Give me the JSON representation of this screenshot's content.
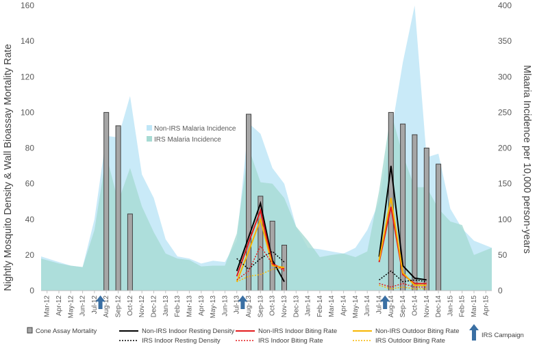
{
  "chart_data": {
    "type": "bar+line+area",
    "categories": [
      "Mar-12",
      "Apr-12",
      "May-12",
      "Jun-12",
      "Jul-12",
      "Aug-12",
      "Sep-12",
      "Oct-12",
      "Nov-12",
      "Dec-12",
      "Jan-13",
      "Feb-13",
      "Mar-13",
      "Apr-13",
      "May-13",
      "Jun-13",
      "Jul-13",
      "Aug-13",
      "Sep-13",
      "Oct-13",
      "Nov-13",
      "Dec-13",
      "Jan-14",
      "Feb-14",
      "Mar-14",
      "Apr-14",
      "May-14",
      "Jun-14",
      "Jul-14",
      "Aug-14",
      "Sep-14",
      "Oct-14",
      "Nov-14",
      "Dec-14",
      "Jan-15",
      "Feb-15",
      "Mar-15",
      "Apr-15"
    ],
    "ylabel": "Nightly Mosquito Density & Wall Bioassay Mortality Rate",
    "y2label": "Mlaaria Incidence per 10,000 person-years",
    "ylim": [
      0,
      160
    ],
    "y2lim": [
      0,
      400
    ],
    "yticks": [
      0,
      20,
      40,
      60,
      80,
      100,
      120,
      140,
      160
    ],
    "y2ticks": [
      0,
      50,
      100,
      150,
      200,
      250,
      300,
      350,
      400
    ],
    "grid": false,
    "areas": [
      {
        "name": "Non-IRS Malaria Incidence",
        "color": "#bfe6f7",
        "axis": "right",
        "x": [
          0,
          1,
          2,
          3,
          4,
          5,
          6,
          7,
          8,
          9,
          10,
          11,
          12,
          13,
          14,
          15,
          16,
          17,
          18,
          19,
          20,
          21,
          22,
          23,
          24,
          25,
          26,
          27,
          28,
          29,
          30,
          31,
          32,
          33,
          34,
          35,
          36,
          37
        ],
        "values": [
          48,
          40,
          35,
          33,
          100,
          217,
          215,
          273,
          163,
          130,
          72,
          48,
          45,
          38,
          42,
          40,
          70,
          235,
          220,
          172,
          150,
          90,
          60,
          58,
          55,
          52,
          60,
          85,
          125,
          220,
          320,
          400,
          187,
          192,
          115,
          87,
          70,
          60
        ]
      },
      {
        "name": "IRS Malaria Incidence",
        "color": "#a6dbd3",
        "axis": "right",
        "x": [
          0,
          1,
          2,
          3,
          4,
          5,
          6,
          7,
          8,
          9,
          10,
          11,
          12,
          13,
          14,
          15,
          16,
          17,
          18,
          19,
          20,
          21,
          22,
          23,
          24,
          25,
          26,
          27,
          28,
          29,
          30,
          31,
          32,
          33,
          34,
          35,
          36,
          37
        ],
        "values": [
          45,
          38,
          35,
          33,
          85,
          190,
          125,
          172,
          118,
          82,
          52,
          45,
          43,
          34,
          35,
          35,
          80,
          200,
          152,
          150,
          130,
          90,
          70,
          47,
          50,
          52,
          47,
          55,
          140,
          250,
          190,
          145,
          145,
          115,
          97,
          92,
          50,
          60
        ]
      }
    ],
    "bars": {
      "name": "Cone Assay Mortality",
      "color": "#a6a6a6",
      "x": [
        5,
        6,
        7,
        17,
        18,
        19,
        20,
        29,
        30,
        31,
        32,
        33
      ],
      "values": [
        100,
        92.5,
        43,
        99,
        53,
        39,
        25.5,
        100,
        93.5,
        87.5,
        80,
        71
      ]
    },
    "series": [
      {
        "name": "Non-IRS Indoor Resting Density",
        "color": "#000000",
        "dash": "solid",
        "x": [
          16,
          17,
          18,
          19,
          20
        ],
        "values": [
          11,
          30,
          49,
          17,
          5
        ]
      },
      {
        "name": "Non-IRS Indoor Biting Rate",
        "color": "#e31a1c",
        "dash": "solid",
        "x": [
          16,
          17,
          18,
          19,
          20
        ],
        "values": [
          8,
          27,
          45,
          15,
          12
        ]
      },
      {
        "name": "Non-IRS Outdoor Biting Rate",
        "color": "#f7b500",
        "dash": "solid",
        "x": [
          16,
          17,
          18,
          19,
          20
        ],
        "values": [
          5,
          22,
          40,
          14,
          13
        ]
      },
      {
        "name": "IRS Indoor Resting Density",
        "color": "#000000",
        "dash": "dotted",
        "x": [
          16,
          17,
          18,
          19,
          20
        ],
        "values": [
          18,
          12,
          18,
          22,
          16
        ]
      },
      {
        "name": "IRS Indoor Biting Rate",
        "color": "#e31a1c",
        "dash": "dotted",
        "x": [
          16,
          17,
          18,
          19,
          20
        ],
        "values": [
          6,
          11,
          25,
          15,
          11
        ]
      },
      {
        "name": "IRS Outdoor Biting Rate",
        "color": "#f7b500",
        "dash": "dotted",
        "x": [
          16,
          17,
          18,
          19,
          20
        ],
        "values": [
          5,
          8,
          9,
          12,
          13
        ]
      },
      {
        "name": "Non-IRS Indoor Resting Density",
        "color": "#000000",
        "dash": "solid",
        "x": [
          28,
          29,
          30,
          31,
          32
        ],
        "values": [
          19,
          70,
          14,
          7,
          6
        ]
      },
      {
        "name": "Non-IRS Indoor Biting Rate",
        "color": "#e31a1c",
        "dash": "solid",
        "x": [
          28,
          29,
          30,
          31,
          32
        ],
        "values": [
          16,
          47,
          9,
          4,
          4
        ]
      },
      {
        "name": "Non-IRS Outdoor Biting Rate",
        "color": "#f7b500",
        "dash": "solid",
        "x": [
          28,
          29,
          30,
          31,
          32
        ],
        "values": [
          17,
          52,
          10,
          3,
          3
        ]
      },
      {
        "name": "IRS Indoor Resting Density",
        "color": "#000000",
        "dash": "dotted",
        "x": [
          28,
          29,
          30,
          31,
          32
        ],
        "values": [
          6,
          11,
          5,
          6,
          5
        ]
      },
      {
        "name": "IRS Indoor Biting Rate",
        "color": "#e31a1c",
        "dash": "dotted",
        "x": [
          28,
          29,
          30,
          31,
          32
        ],
        "values": [
          4,
          2,
          4,
          2,
          2
        ]
      },
      {
        "name": "IRS Outdoor Biting Rate",
        "color": "#f7b500",
        "dash": "dotted",
        "x": [
          28,
          29,
          30,
          31,
          32
        ],
        "values": [
          3,
          1,
          2,
          1,
          1
        ]
      }
    ],
    "irs_campaigns": {
      "label": "IRS Campaign",
      "color": "#3a6fa3",
      "x": [
        4.5,
        16.5,
        28.5
      ]
    },
    "legend": {
      "placement": "bottom",
      "items": [
        {
          "label": "Cone Assay Mortality",
          "kind": "bar",
          "color": "#a6a6a6"
        },
        {
          "label": "Non-IRS Indoor Resting Density",
          "kind": "line",
          "color": "#000000",
          "dash": "solid"
        },
        {
          "label": "Non-IRS Indoor Biting Rate",
          "kind": "line",
          "color": "#e31a1c",
          "dash": "solid"
        },
        {
          "label": "Non-IRS Outdoor Biting Rate",
          "kind": "line",
          "color": "#f7b500",
          "dash": "solid"
        },
        {
          "label": "IRS Indoor Resting Density",
          "kind": "line",
          "color": "#000000",
          "dash": "dotted"
        },
        {
          "label": "IRS Indoor Biting Rate",
          "kind": "line",
          "color": "#e31a1c",
          "dash": "dotted"
        },
        {
          "label": "IRS Outdoor Biting Rate",
          "kind": "line",
          "color": "#f7b500",
          "dash": "dotted"
        },
        {
          "label": "IRS Campaign",
          "kind": "arrow",
          "color": "#3a6fa3"
        }
      ],
      "area_items": [
        {
          "label": "Non-IRS Malaria Incidence",
          "color": "#bfe6f7"
        },
        {
          "label": "IRS Malaria Incidence",
          "color": "#a6dbd3"
        }
      ]
    }
  }
}
